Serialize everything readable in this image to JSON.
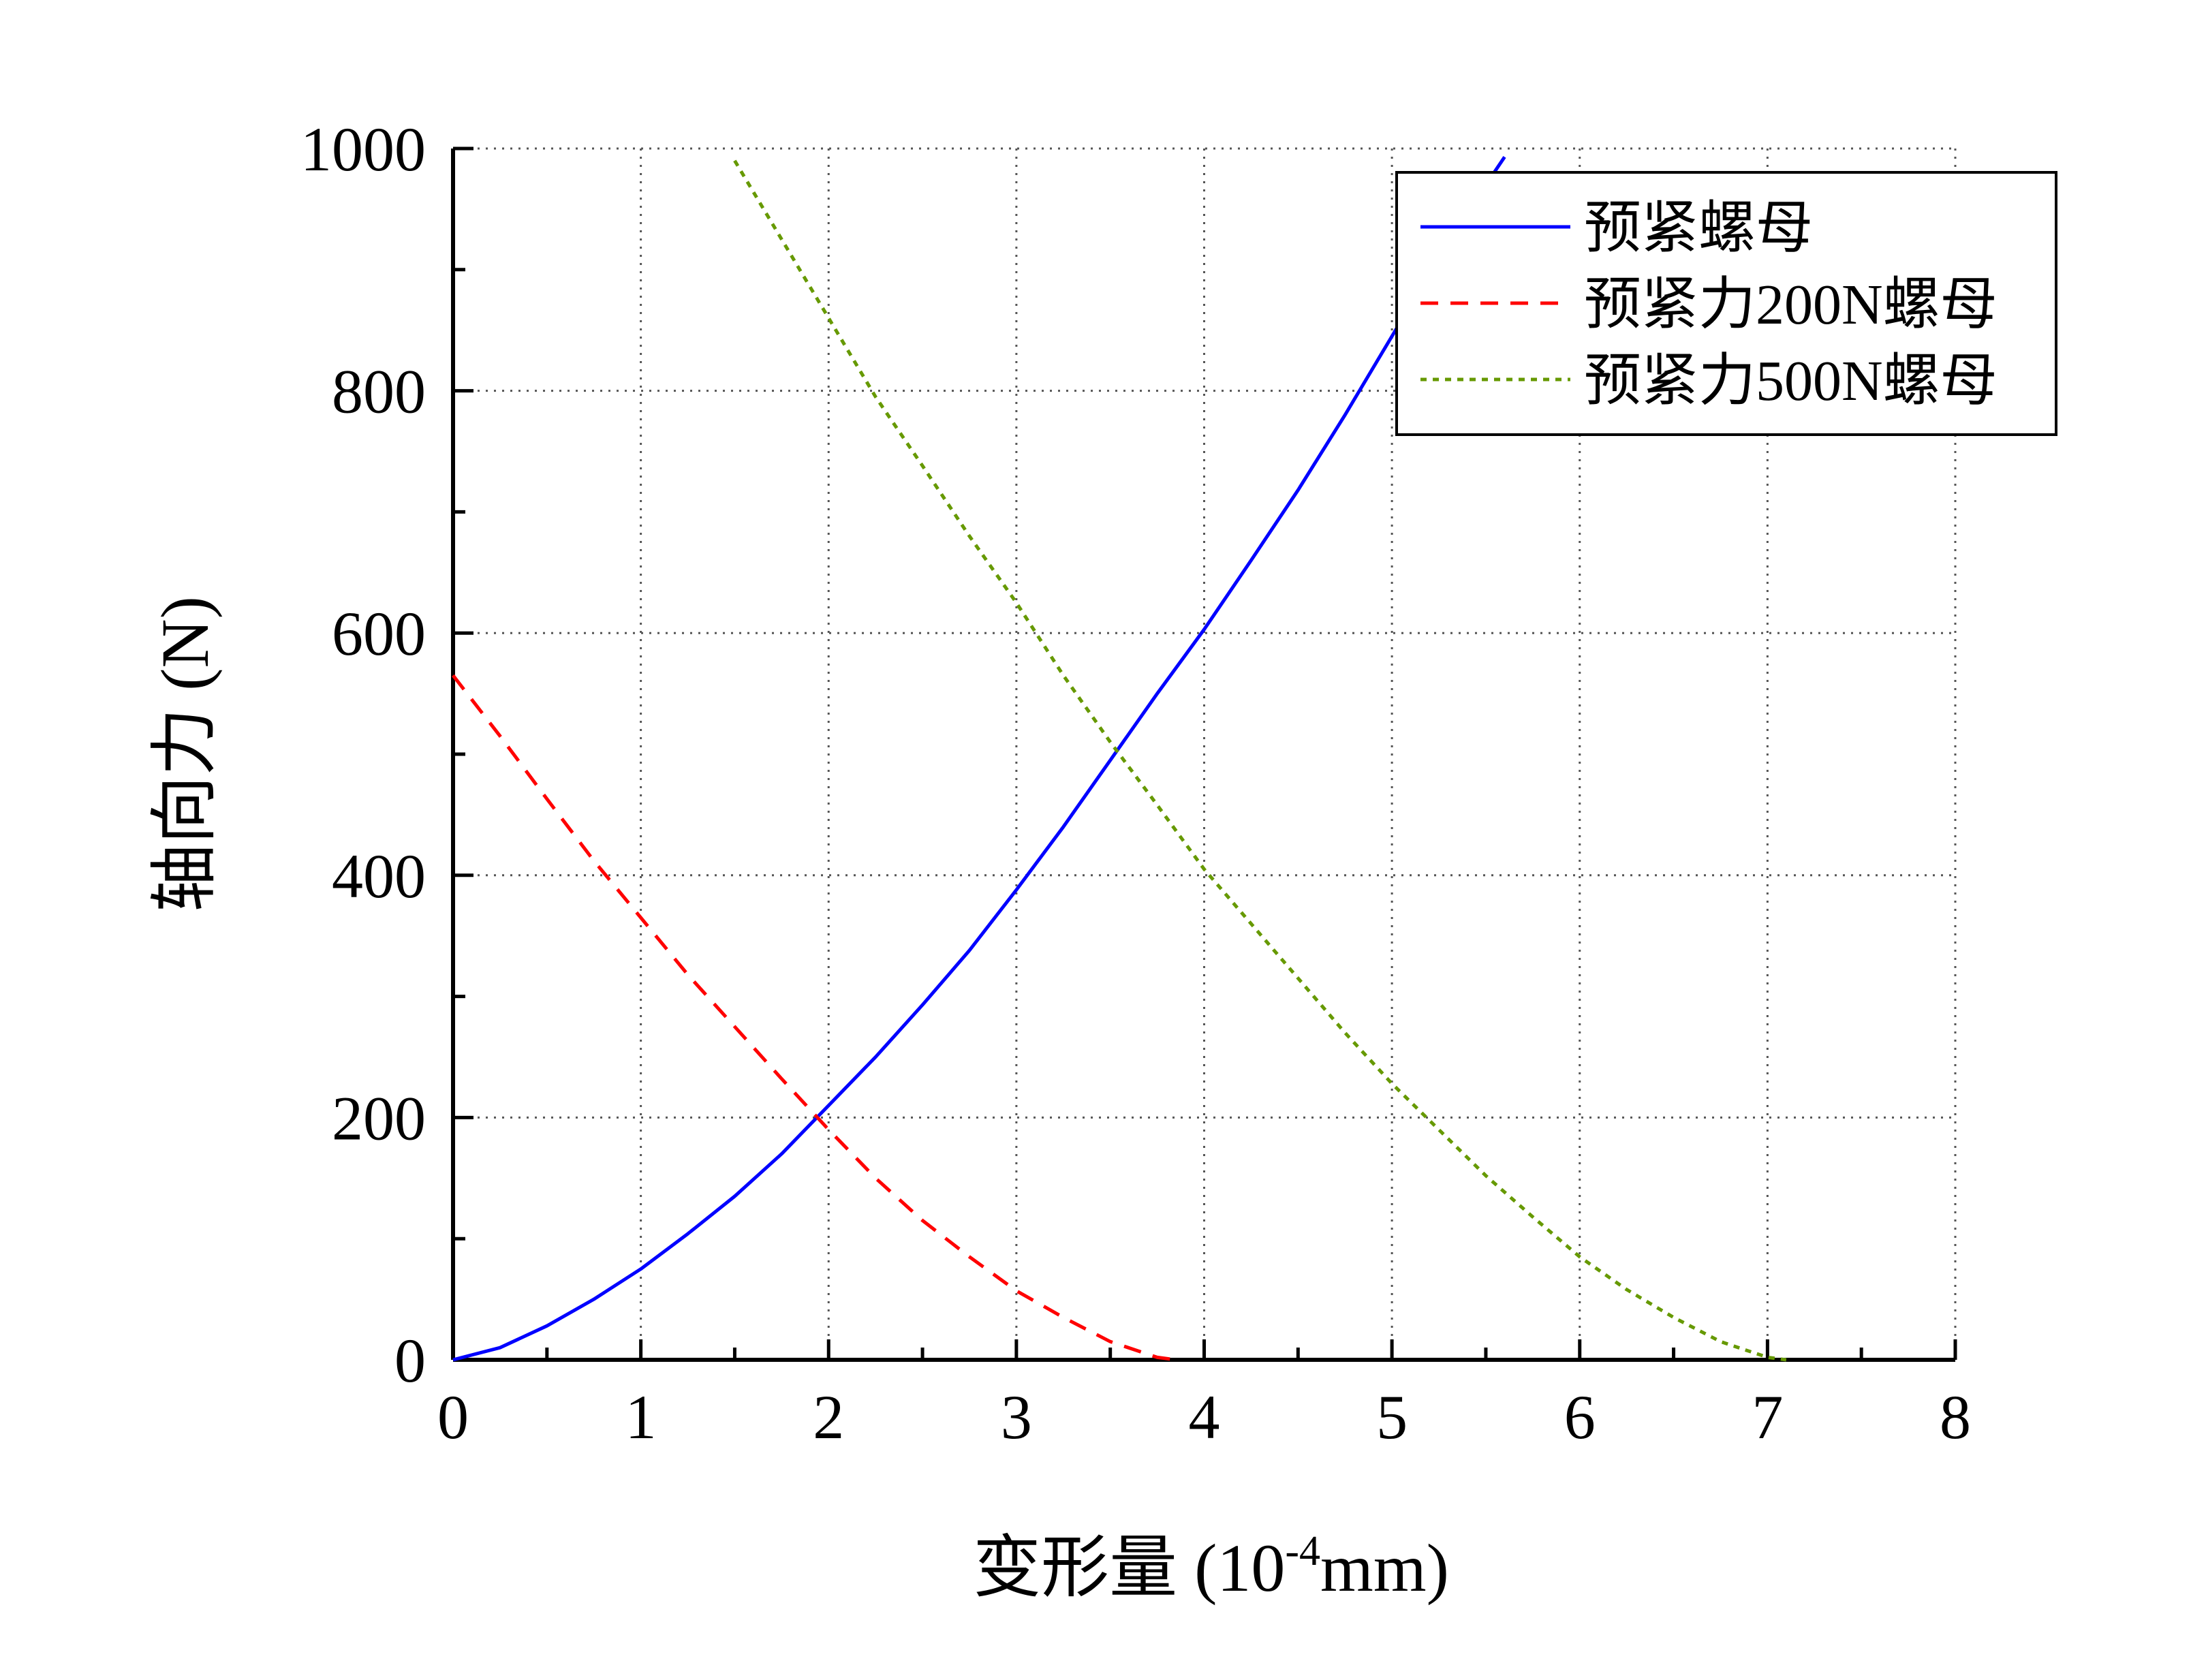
{
  "chart_data": {
    "type": "line",
    "xlabel": "变形量 (10",
    "xlabel_sup": "-4",
    "xlabel_tail": "mm)",
    "ylabel": "轴向力 (N)",
    "xlim": [
      0,
      8
    ],
    "ylim": [
      0,
      1000
    ],
    "xticks": [
      "0",
      "1",
      "2",
      "3",
      "4",
      "5",
      "6",
      "7",
      "8"
    ],
    "yticks": [
      "0",
      "200",
      "400",
      "600",
      "800",
      "1000"
    ],
    "grid": true,
    "grid_style": "dotted",
    "legend_position": "top-right",
    "series": [
      {
        "name": "预紧螺母",
        "color": "#0000ff",
        "dash": "solid",
        "points": [
          [
            0,
            0
          ],
          [
            0.25,
            10
          ],
          [
            0.5,
            28
          ],
          [
            0.75,
            50
          ],
          [
            1,
            75
          ],
          [
            1.25,
            104
          ],
          [
            1.5,
            135
          ],
          [
            1.75,
            170
          ],
          [
            2,
            210
          ],
          [
            2.25,
            250
          ],
          [
            2.5,
            293
          ],
          [
            2.75,
            338
          ],
          [
            3,
            388
          ],
          [
            3.25,
            440
          ],
          [
            3.5,
            495
          ],
          [
            3.75,
            550
          ],
          [
            4,
            603
          ],
          [
            4.25,
            660
          ],
          [
            4.5,
            718
          ],
          [
            4.75,
            780
          ],
          [
            5,
            845
          ],
          [
            5.25,
            910
          ],
          [
            5.5,
            970
          ],
          [
            5.6,
            993
          ]
        ]
      },
      {
        "name": "预紧力200N螺母",
        "color": "#ff0000",
        "dash": "dashed",
        "points": [
          [
            0,
            565
          ],
          [
            0.25,
            515
          ],
          [
            0.5,
            463
          ],
          [
            0.75,
            412
          ],
          [
            1,
            365
          ],
          [
            1.25,
            318
          ],
          [
            1.5,
            275
          ],
          [
            1.75,
            232
          ],
          [
            2,
            190
          ],
          [
            2.25,
            150
          ],
          [
            2.5,
            115
          ],
          [
            2.75,
            85
          ],
          [
            3,
            57
          ],
          [
            3.25,
            35
          ],
          [
            3.5,
            15
          ],
          [
            3.75,
            2
          ],
          [
            3.85,
            0
          ]
        ]
      },
      {
        "name": "预紧力500N螺母",
        "color": "#669900",
        "dash": "dotted",
        "points": [
          [
            1.5,
            990
          ],
          [
            1.75,
            925
          ],
          [
            2,
            860
          ],
          [
            2.25,
            795
          ],
          [
            2.5,
            738
          ],
          [
            2.75,
            680
          ],
          [
            3,
            625
          ],
          [
            3.25,
            565
          ],
          [
            3.5,
            510
          ],
          [
            3.75,
            458
          ],
          [
            4,
            405
          ],
          [
            4.25,
            360
          ],
          [
            4.5,
            315
          ],
          [
            4.75,
            270
          ],
          [
            5,
            228
          ],
          [
            5.25,
            190
          ],
          [
            5.5,
            152
          ],
          [
            5.75,
            118
          ],
          [
            6,
            85
          ],
          [
            6.25,
            58
          ],
          [
            6.5,
            35
          ],
          [
            6.75,
            15
          ],
          [
            7,
            2
          ],
          [
            7.1,
            0
          ]
        ]
      }
    ]
  }
}
